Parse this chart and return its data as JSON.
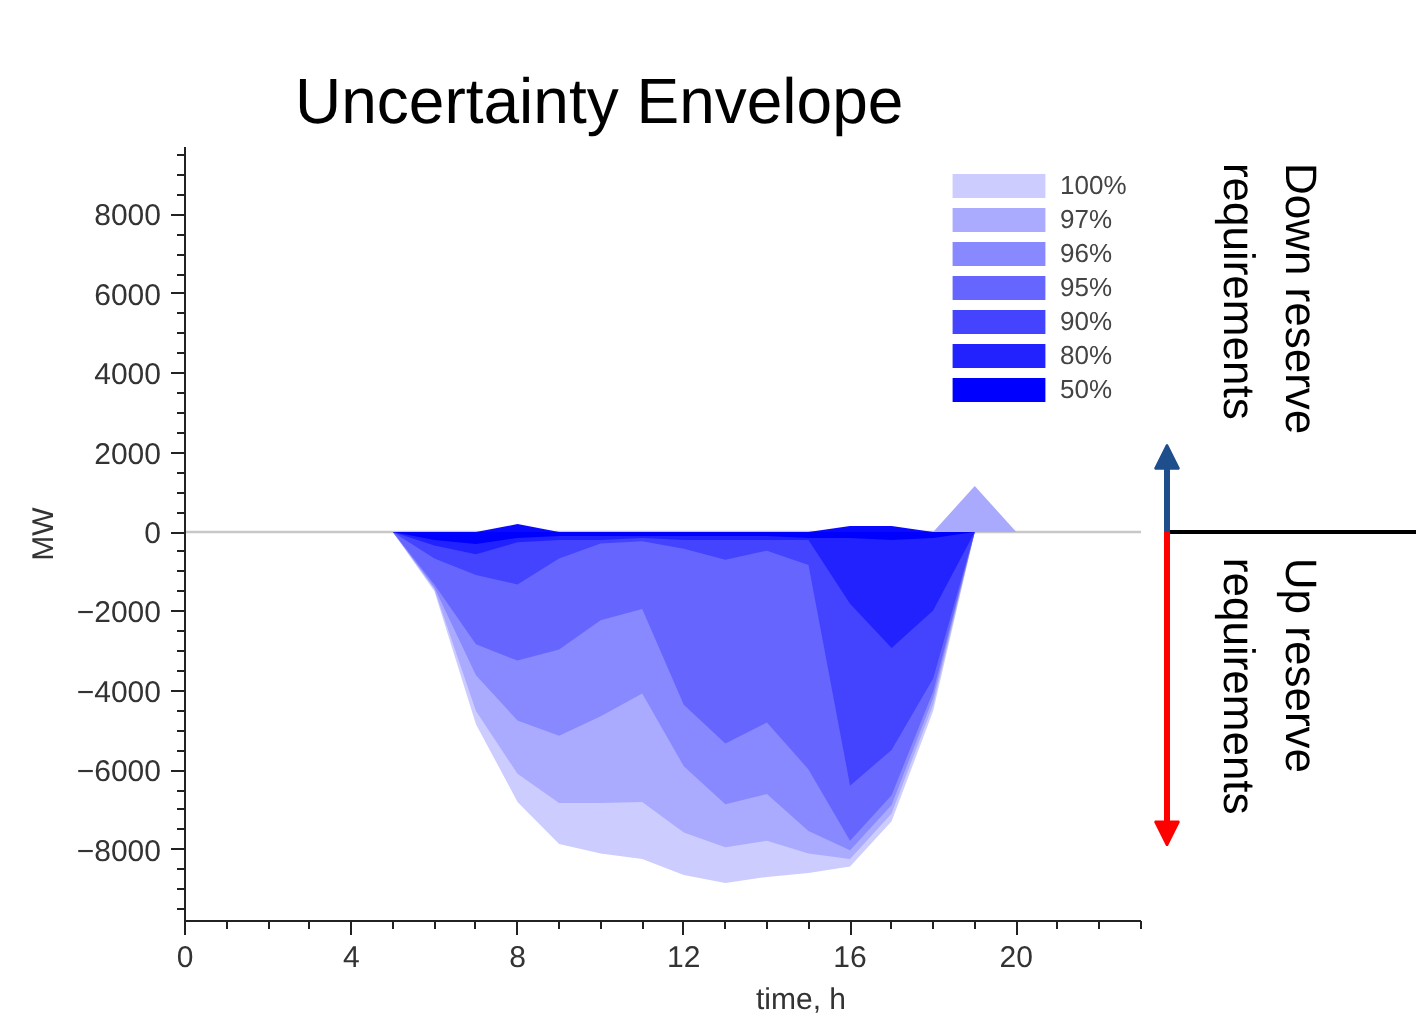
{
  "chart_data": {
    "type": "area",
    "title": "Uncertainty Envelope",
    "xlabel": "time, h",
    "ylabel": "MW",
    "x": [
      5,
      6,
      7,
      8,
      9,
      10,
      11,
      12,
      13,
      14,
      15,
      16,
      17,
      18,
      19,
      20
    ],
    "series": [
      {
        "name": "100%",
        "color": "#ccccff",
        "values": [
          0,
          -1490,
          -4840,
          -6800,
          -7860,
          -8100,
          -8240,
          -8640,
          -8840,
          -8690,
          -8590,
          -8430,
          -7290,
          -4510,
          0,
          0
        ]
      },
      {
        "color": "#a9a9fd",
        "x": [
          18,
          19,
          20
        ],
        "values": [
          0,
          1160,
          0
        ]
      },
      {
        "name": "97%",
        "color": "#aaaaff",
        "values": [
          0,
          -1440,
          -4510,
          -6090,
          -6830,
          -6830,
          -6800,
          -7570,
          -7940,
          -7780,
          -8100,
          -8240,
          -7090,
          -4350,
          0,
          0
        ]
      },
      {
        "name": "96%",
        "color": "#8888ff",
        "values": [
          0,
          -1400,
          -3610,
          -4750,
          -5130,
          -4640,
          -4070,
          -5900,
          -6860,
          -6600,
          -7530,
          -8020,
          -6880,
          -4180,
          0,
          0
        ]
      },
      {
        "name": "95%",
        "color": "#6666ff",
        "values": [
          0,
          -1320,
          -2830,
          -3240,
          -2960,
          -2220,
          -1940,
          -4350,
          -5330,
          -4800,
          -5980,
          -7780,
          -6630,
          -4020,
          0,
          0
        ]
      },
      {
        "name": "90%",
        "color": "#4444ff",
        "values": [
          0,
          -670,
          -1080,
          -1320,
          -670,
          -290,
          -230,
          -420,
          -700,
          -470,
          -830,
          -6390,
          -5490,
          -3690,
          0,
          0
        ]
      },
      {
        "name": "80%",
        "color": "#2222ff",
        "values": [
          0,
          -340,
          -560,
          -260,
          -200,
          -200,
          -150,
          -200,
          -200,
          -200,
          -200,
          -1810,
          -2920,
          -1980,
          0,
          0
        ]
      },
      {
        "name": "50%",
        "color": "#0000ff",
        "values": [
          0,
          -200,
          -300,
          -150,
          -100,
          -100,
          -100,
          -100,
          -100,
          -100,
          -150,
          -150,
          -200,
          -150,
          0,
          0
        ]
      },
      {
        "color": "#0a0aff",
        "x": [
          7,
          8,
          9,
          15,
          16,
          17,
          18
        ],
        "values": [
          0,
          200,
          0,
          0,
          150,
          150,
          0
        ]
      }
    ],
    "xlim": [
      0,
      23
    ],
    "ylim": [
      -9800,
      9700
    ],
    "xticks": [
      0,
      4,
      8,
      12,
      16,
      20
    ],
    "yticks": [
      -8000,
      -6000,
      -4000,
      -2000,
      0,
      2000,
      4000,
      6000,
      8000
    ],
    "ref_lines": [
      {
        "axis": "y",
        "value": 0,
        "color": "#c8c8c8"
      }
    ],
    "legend": "top right",
    "grid": false,
    "annotations": [
      "Down reserve requirements",
      "Up reserve requirements"
    ]
  }
}
